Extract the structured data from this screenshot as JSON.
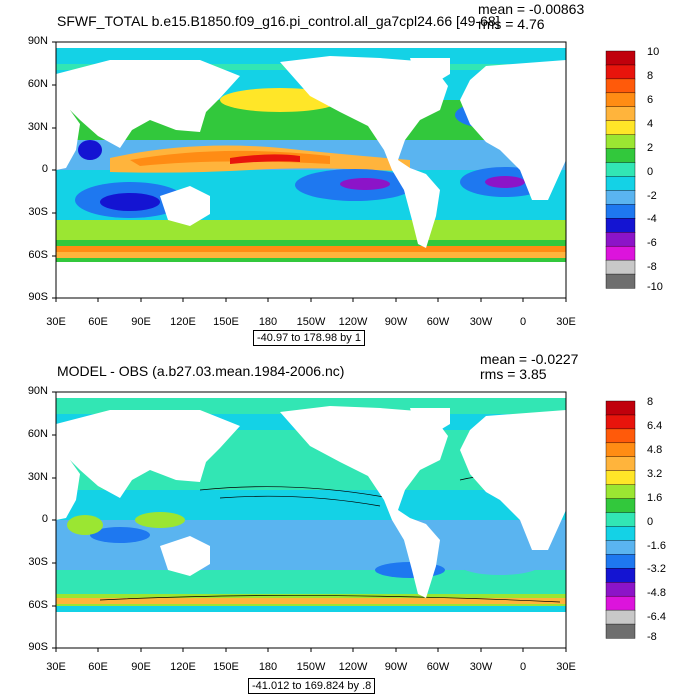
{
  "panels": [
    {
      "title": "SFWF_TOTAL b.e15.B1850.f09_g16.pi_control.all_ga7cpl24.66 [49-68]",
      "mean": "mean = -0.00863",
      "rms": "rms = 4.76",
      "range": "-40.97 to 178.98 by 1",
      "colorbar_labels": [
        "10",
        "8",
        "6",
        "4",
        "2",
        "0",
        "-2",
        "-4",
        "-6",
        "-8",
        "-10"
      ],
      "colors": [
        "#c0000c",
        "#e8140c",
        "#ff5a0a",
        "#ff8c14",
        "#ffb43c",
        "#ffe628",
        "#9be632",
        "#32c83c",
        "#32e6b4",
        "#14d2e6",
        "#5ab4f0",
        "#1e78f0",
        "#1414d2",
        "#8c14c8",
        "#dc14dc",
        "#c8c8c8",
        "#6e6e6e"
      ]
    },
    {
      "title": "MODEL - OBS (a.b27.03.mean.1984-2006.nc)",
      "mean": "mean = -0.0227",
      "rms": "rms = 3.85",
      "range": "-41.012 to 169.824 by .8",
      "colorbar_labels": [
        "8",
        "6.4",
        "4.8",
        "3.2",
        "1.6",
        "0",
        "-1.6",
        "-3.2",
        "-4.8",
        "-6.4",
        "-8"
      ],
      "colors": [
        "#c0000c",
        "#e8140c",
        "#ff5a0a",
        "#ff8c14",
        "#ffb43c",
        "#ffe628",
        "#9be632",
        "#32c83c",
        "#32e6b4",
        "#14d2e6",
        "#5ab4f0",
        "#1e78f0",
        "#1414d2",
        "#8c14c8",
        "#dc14dc",
        "#c8c8c8",
        "#6e6e6e"
      ]
    }
  ],
  "lat_labels": [
    "90N",
    "60N",
    "30N",
    "0",
    "30S",
    "60S",
    "90S"
  ],
  "lon_labels": [
    "30E",
    "60E",
    "90E",
    "120E",
    "150E",
    "180",
    "150W",
    "120W",
    "90W",
    "60W",
    "30W",
    "0",
    "30E"
  ]
}
